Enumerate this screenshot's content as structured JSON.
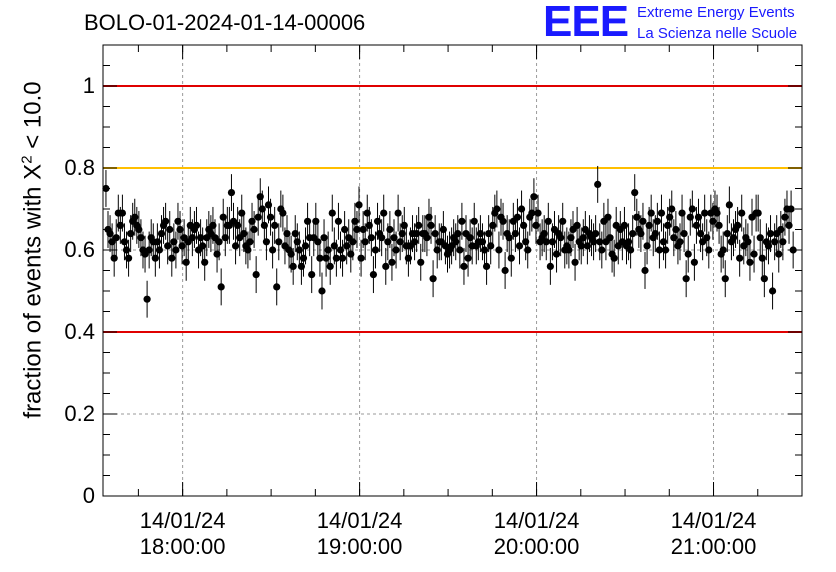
{
  "run_title": "BOLO-01-2024-01-14-00006",
  "logo": {
    "mark": "EEE",
    "line1": "Extreme Energy Events",
    "line2": "La Scienza nelle Scuole",
    "color": "#1a1aff"
  },
  "colors": {
    "limit_red": "#e00000",
    "limit_orange": "#ffbf00",
    "points": "#000000",
    "grid": "#9a9a9a"
  },
  "chart_data": {
    "type": "scatter",
    "title": "BOLO-01-2024-01-14-00006",
    "ylabel": "fraction of events with X",
    "ylabel_sup": "2",
    "ylabel_tail": " < 10.0",
    "xlabel": "",
    "ylim": [
      0,
      1.1
    ],
    "xlim_hours": [
      17.55,
      21.5
    ],
    "yticks": [
      "0",
      "0.2",
      "0.4",
      "0.6",
      "0.8",
      "1"
    ],
    "xticks": [
      {
        "date": "14/01/24",
        "time": "18:00:00"
      },
      {
        "date": "14/01/24",
        "time": "19:00:00"
      },
      {
        "date": "14/01/24",
        "time": "20:00:00"
      },
      {
        "date": "14/01/24",
        "time": "21:00:00"
      }
    ],
    "grid": true,
    "reference_lines": [
      {
        "y": 1.0,
        "color": "red"
      },
      {
        "y": 0.8,
        "color": "orange"
      },
      {
        "y": 0.4,
        "color": "red"
      }
    ],
    "series": [
      {
        "x_start": "17:34:00",
        "x_end": "21:27:00",
        "error": 0.045,
        "values": [
          0.75,
          0.65,
          0.64,
          0.62,
          0.58,
          0.63,
          0.69,
          0.66,
          0.69,
          0.62,
          0.6,
          0.58,
          0.64,
          0.67,
          0.68,
          0.66,
          0.65,
          0.63,
          0.6,
          0.59,
          0.48,
          0.6,
          0.63,
          0.62,
          0.58,
          0.62,
          0.6,
          0.64,
          0.66,
          0.67,
          0.61,
          0.65,
          0.58,
          0.62,
          0.6,
          0.67,
          0.65,
          0.61,
          0.63,
          0.57,
          0.62,
          0.66,
          0.63,
          0.65,
          0.66,
          0.6,
          0.63,
          0.61,
          0.57,
          0.63,
          0.65,
          0.64,
          0.66,
          0.63,
          0.59,
          0.62,
          0.51,
          0.68,
          0.63,
          0.66,
          0.66,
          0.74,
          0.67,
          0.61,
          0.66,
          0.63,
          0.69,
          0.64,
          0.61,
          0.6,
          0.62,
          0.67,
          0.65,
          0.54,
          0.68,
          0.73,
          0.7,
          0.66,
          0.62,
          0.71,
          0.68,
          0.6,
          0.66,
          0.51,
          0.62,
          0.7,
          0.69,
          0.61,
          0.64,
          0.6,
          0.59,
          0.56,
          0.64,
          0.62,
          0.6,
          0.56,
          0.58,
          0.61,
          0.67,
          0.63,
          0.54,
          0.63,
          0.67,
          0.62,
          0.58,
          0.5,
          0.63,
          0.58,
          0.6,
          0.56,
          0.69,
          0.61,
          0.58,
          0.67,
          0.6,
          0.58,
          0.65,
          0.61,
          0.63,
          0.59,
          0.62,
          0.67,
          0.65,
          0.71,
          0.58,
          0.65,
          0.62,
          0.69,
          0.66,
          0.63,
          0.54,
          0.6,
          0.67,
          0.64,
          0.63,
          0.69,
          0.56,
          0.62,
          0.65,
          0.57,
          0.63,
          0.6,
          0.69,
          0.62,
          0.64,
          0.66,
          0.61,
          0.58,
          0.61,
          0.64,
          0.62,
          0.64,
          0.66,
          0.57,
          0.64,
          0.64,
          0.63,
          0.68,
          0.66,
          0.53,
          0.64,
          0.6,
          0.62,
          0.62,
          0.65,
          0.61,
          0.59,
          0.6,
          0.61,
          0.63,
          0.62,
          0.64,
          0.6,
          0.67,
          0.56,
          0.64,
          0.58,
          0.63,
          0.61,
          0.67,
          0.61,
          0.62,
          0.64,
          0.62,
          0.6,
          0.56,
          0.64,
          0.61,
          0.66,
          0.69,
          0.7,
          0.6,
          0.68,
          0.67,
          0.55,
          0.64,
          0.63,
          0.58,
          0.67,
          0.64,
          0.68,
          0.61,
          0.7,
          0.66,
          0.62,
          0.6,
          0.68,
          0.69,
          0.73,
          0.66,
          0.69,
          0.62,
          0.63,
          0.64,
          0.62,
          0.67,
          0.56,
          0.62,
          0.65,
          0.59,
          0.64,
          0.63,
          0.67,
          0.6,
          0.61,
          0.6,
          0.63,
          0.65,
          0.57,
          0.66,
          0.62,
          0.61,
          0.63,
          0.65,
          0.61,
          0.64,
          0.63,
          0.62,
          0.64,
          0.76,
          0.62,
          0.6,
          0.67,
          0.62,
          0.68,
          0.63,
          0.59,
          0.58,
          0.66,
          0.61,
          0.65,
          0.62,
          0.66,
          0.61,
          0.62,
          0.6,
          0.64,
          0.74,
          0.68,
          0.65,
          0.64,
          0.67,
          0.55,
          0.61,
          0.66,
          0.69,
          0.63,
          0.64,
          0.67,
          0.6,
          0.69,
          0.62,
          0.6,
          0.66,
          0.68,
          0.7,
          0.63,
          0.65,
          0.61,
          0.62,
          0.69,
          0.64,
          0.53,
          0.59,
          0.68,
          0.7,
          0.57,
          0.66,
          0.68,
          0.64,
          0.62,
          0.69,
          0.63,
          0.6,
          0.69,
          0.67,
          0.7,
          0.69,
          0.66,
          0.59,
          0.6,
          0.53,
          0.64,
          0.71,
          0.62,
          0.63,
          0.65,
          0.66,
          0.58,
          0.69,
          0.61,
          0.63,
          0.62,
          0.57,
          0.68,
          0.59,
          0.69,
          0.69,
          0.63,
          0.58,
          0.53,
          0.62,
          0.61,
          0.64,
          0.5,
          0.62,
          0.64,
          0.59,
          0.65,
          0.62,
          0.68,
          0.7,
          0.66,
          0.7,
          0.6
        ]
      }
    ]
  }
}
